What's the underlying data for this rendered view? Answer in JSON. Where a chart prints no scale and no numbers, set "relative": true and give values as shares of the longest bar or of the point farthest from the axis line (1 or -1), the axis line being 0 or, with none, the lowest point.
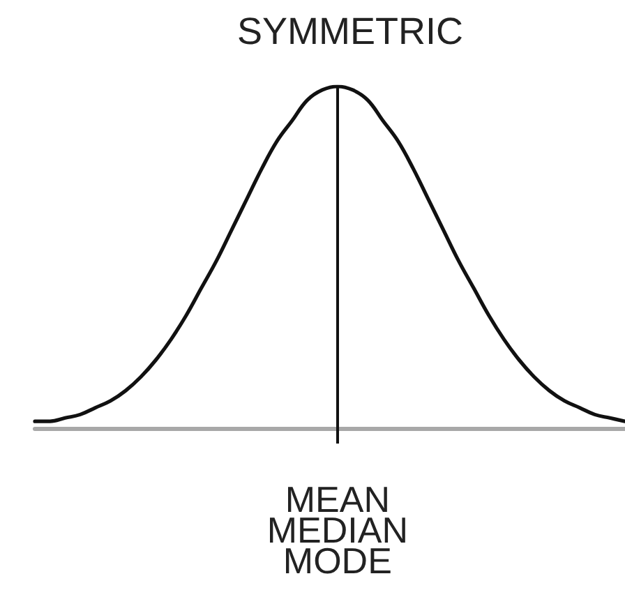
{
  "chart_data": {
    "type": "line",
    "title": "SYMMETRIC",
    "categories": [
      null,
      null,
      null,
      null,
      null,
      null,
      null,
      null,
      null,
      null,
      null,
      null,
      null,
      null,
      null,
      null,
      null,
      null,
      null,
      null,
      null,
      null,
      null,
      null,
      null,
      null,
      null,
      null,
      null,
      null,
      null,
      null,
      null,
      null,
      null,
      null,
      null,
      null,
      null,
      null
    ],
    "values": [
      0.02,
      0.02,
      0.03,
      0.04,
      0.06,
      0.08,
      0.11,
      0.15,
      0.2,
      0.26,
      0.33,
      0.41,
      0.49,
      0.58,
      0.67,
      0.76,
      0.84,
      0.9,
      0.96,
      0.99,
      1.0,
      0.99,
      0.96,
      0.9,
      0.84,
      0.76,
      0.67,
      0.58,
      0.49,
      0.41,
      0.33,
      0.26,
      0.2,
      0.15,
      0.11,
      0.08,
      0.06,
      0.04,
      0.03,
      0.02
    ],
    "color": "#111111",
    "relative": true,
    "marker": "none",
    "line_style": "solid",
    "grid": false,
    "annotations": [
      "MEAN\nMEDIAN\nMODE"
    ]
  }
}
